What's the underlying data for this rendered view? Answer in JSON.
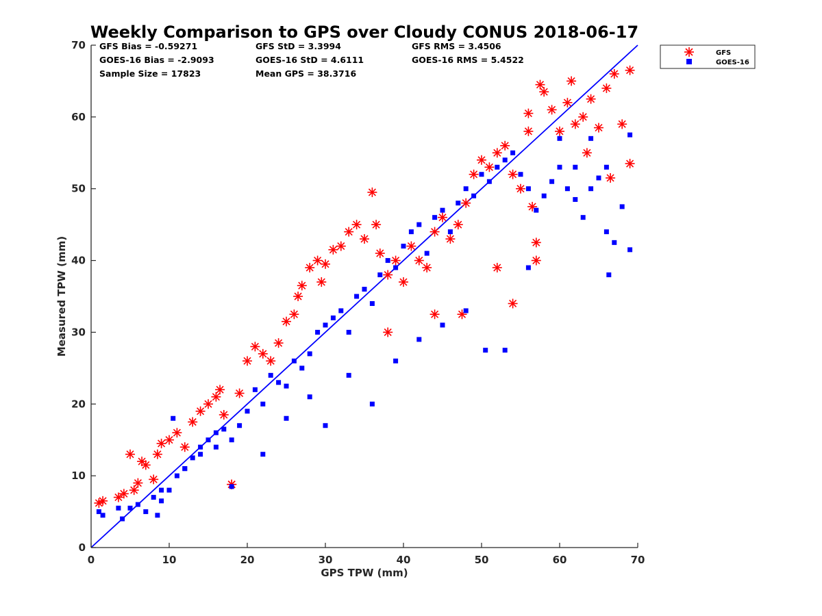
{
  "chart_data": {
    "type": "scatter",
    "title": "Weekly Comparison to GPS over Cloudy CONUS 2018-06-17",
    "xlabel": "GPS TPW (mm)",
    "ylabel": "Measured TPW (mm)",
    "xlim": [
      0,
      70
    ],
    "ylim": [
      0,
      70
    ],
    "x_ticks": [
      "0",
      "10",
      "20",
      "30",
      "40",
      "50",
      "60",
      "70"
    ],
    "y_ticks": [
      "0",
      "10",
      "20",
      "30",
      "40",
      "50",
      "60",
      "70"
    ],
    "grid": false,
    "legend_position": "outside-top-right",
    "reference_line": {
      "type": "one-to-one",
      "from": [
        0,
        0
      ],
      "to": [
        70,
        70
      ],
      "color": "#0000ff"
    },
    "stats": [
      [
        "GFS Bias = -0.59271",
        "GFS StD = 3.3994",
        "GFS RMS = 3.4506"
      ],
      [
        "GOES-16 Bias = -2.9093",
        "GOES-16 StD = 4.6111",
        "GOES-16 RMS = 5.4522"
      ],
      [
        "Sample Size = 17823",
        "Mean GPS = 38.3716",
        ""
      ]
    ],
    "series": [
      {
        "name": "GFS",
        "marker": "asterisk",
        "color": "#ff0000",
        "x": [
          1.0,
          1.5,
          3.5,
          4.2,
          5.0,
          5.5,
          6.0,
          6.5,
          7.0,
          8.0,
          8.5,
          9.0,
          10.0,
          11.0,
          12.0,
          13.0,
          14.0,
          15.0,
          16.0,
          16.5,
          17.0,
          18.0,
          19.0,
          20.0,
          21.0,
          22.0,
          23.0,
          24.0,
          25.0,
          26.0,
          26.5,
          27.0,
          28.0,
          29.0,
          29.5,
          30.0,
          31.0,
          32.0,
          33.0,
          34.0,
          35.0,
          36.0,
          36.5,
          37.0,
          38.0,
          39.0,
          40.0,
          41.0,
          42.0,
          43.0,
          44.0,
          45.0,
          46.0,
          47.0,
          48.0,
          49.0,
          50.0,
          51.0,
          52.0,
          53.0,
          54.0,
          55.0,
          56.0,
          56.5,
          57.0,
          57.5,
          58.0,
          59.0,
          60.0,
          61.0,
          61.5,
          62.0,
          63.0,
          63.5,
          64.0,
          65.0,
          66.0,
          66.5,
          67.0,
          68.0,
          69.0,
          69.0,
          18.0,
          56.0,
          57.0,
          44.0,
          47.5,
          54.0,
          52.0,
          38.0
        ],
        "y": [
          6.2,
          6.5,
          7.0,
          7.5,
          13.0,
          8.0,
          9.0,
          12.0,
          11.5,
          9.5,
          13.0,
          14.5,
          15.0,
          16.0,
          14.0,
          17.5,
          19.0,
          20.0,
          21.0,
          22.0,
          18.5,
          8.8,
          21.5,
          26.0,
          28.0,
          27.0,
          26.0,
          28.5,
          31.5,
          32.5,
          35.0,
          36.5,
          39.0,
          40.0,
          37.0,
          39.5,
          41.5,
          42.0,
          44.0,
          45.0,
          43.0,
          49.5,
          45.0,
          41.0,
          38.0,
          40.0,
          37.0,
          42.0,
          40.0,
          39.0,
          44.0,
          46.0,
          43.0,
          45.0,
          48.0,
          52.0,
          54.0,
          53.0,
          55.0,
          56.0,
          52.0,
          50.0,
          60.5,
          47.5,
          42.5,
          64.5,
          63.5,
          61.0,
          58.0,
          62.0,
          65.0,
          59.0,
          60.0,
          55.0,
          62.5,
          58.5,
          64.0,
          51.5,
          66.0,
          59.0,
          66.5,
          53.5,
          8.8,
          58.0,
          40.0,
          32.5,
          32.5,
          34.0,
          39.0,
          30.0
        ]
      },
      {
        "name": "GOES-16",
        "marker": "square",
        "color": "#0000ff",
        "x": [
          1.0,
          1.5,
          3.5,
          4.0,
          5.0,
          6.0,
          7.0,
          8.0,
          8.5,
          9.0,
          10.0,
          10.5,
          11.0,
          12.0,
          13.0,
          14.0,
          15.0,
          16.0,
          17.0,
          18.0,
          19.0,
          20.0,
          21.0,
          22.0,
          23.0,
          24.0,
          25.0,
          26.0,
          27.0,
          28.0,
          29.0,
          30.0,
          31.0,
          32.0,
          33.0,
          34.0,
          35.0,
          36.0,
          37.0,
          38.0,
          39.0,
          40.0,
          41.0,
          42.0,
          43.0,
          44.0,
          45.0,
          46.0,
          47.0,
          48.0,
          49.0,
          50.0,
          51.0,
          52.0,
          53.0,
          54.0,
          55.0,
          56.0,
          57.0,
          58.0,
          59.0,
          60.0,
          61.0,
          62.0,
          63.0,
          64.0,
          65.0,
          66.0,
          66.3,
          67.0,
          68.0,
          69.0,
          69.0,
          9.0,
          12.0,
          14.0,
          16.0,
          18.0,
          22.0,
          25.0,
          28.0,
          30.0,
          33.0,
          36.0,
          39.0,
          42.0,
          45.0,
          48.0,
          50.5,
          53.0,
          56.0,
          60.0,
          62.0,
          64.0,
          66.0
        ],
        "y": [
          5.0,
          4.5,
          5.5,
          4.0,
          5.5,
          6.0,
          5.0,
          7.0,
          4.5,
          6.5,
          8.0,
          18.0,
          10.0,
          11.0,
          12.5,
          13.0,
          15.0,
          14.0,
          16.5,
          8.5,
          17.0,
          19.0,
          22.0,
          20.0,
          24.0,
          23.0,
          22.5,
          26.0,
          25.0,
          27.0,
          30.0,
          31.0,
          32.0,
          33.0,
          30.0,
          35.0,
          36.0,
          34.0,
          38.0,
          40.0,
          39.0,
          42.0,
          44.0,
          45.0,
          41.0,
          46.0,
          47.0,
          44.0,
          48.0,
          50.0,
          49.0,
          52.0,
          51.0,
          53.0,
          54.0,
          55.0,
          52.0,
          50.0,
          47.0,
          49.0,
          51.0,
          53.0,
          50.0,
          48.5,
          46.0,
          57.0,
          51.5,
          44.0,
          38.0,
          42.5,
          47.5,
          41.5,
          57.5,
          8.0,
          11.0,
          14.0,
          16.0,
          15.0,
          13.0,
          18.0,
          21.0,
          17.0,
          24.0,
          20.0,
          26.0,
          29.0,
          31.0,
          33.0,
          27.5,
          27.5,
          39.0,
          57.0,
          53.0,
          50.0,
          53.0
        ]
      }
    ]
  }
}
